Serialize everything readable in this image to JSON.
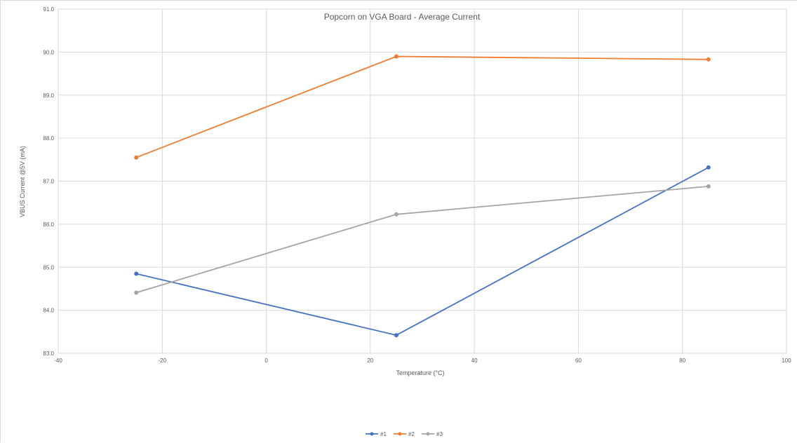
{
  "chart_data": {
    "type": "line",
    "title": "Popcorn on VGA Board - Average Current",
    "xlabel": "Temperature (°C)",
    "ylabel": "VBUS Current @5V (mA)",
    "xlim": [
      -40,
      100
    ],
    "ylim": [
      83.0,
      91.0
    ],
    "x_ticks": [
      "-40",
      "-20",
      "0",
      "20",
      "40",
      "60",
      "80",
      "100"
    ],
    "y_ticks": [
      "83.0",
      "84.0",
      "85.0",
      "86.0",
      "87.0",
      "88.0",
      "89.0",
      "90.0",
      "91.0"
    ],
    "grid": true,
    "legend_position": "bottom",
    "x": [
      -25,
      25,
      85
    ],
    "series": [
      {
        "name": "#1",
        "color": "#4472c4",
        "values": [
          84.85,
          83.42,
          87.32
        ]
      },
      {
        "name": "#2",
        "color": "#ed7d31",
        "values": [
          87.55,
          89.9,
          89.83
        ]
      },
      {
        "name": "#3",
        "color": "#a5a5a5",
        "values": [
          84.41,
          86.23,
          86.88
        ]
      }
    ]
  }
}
